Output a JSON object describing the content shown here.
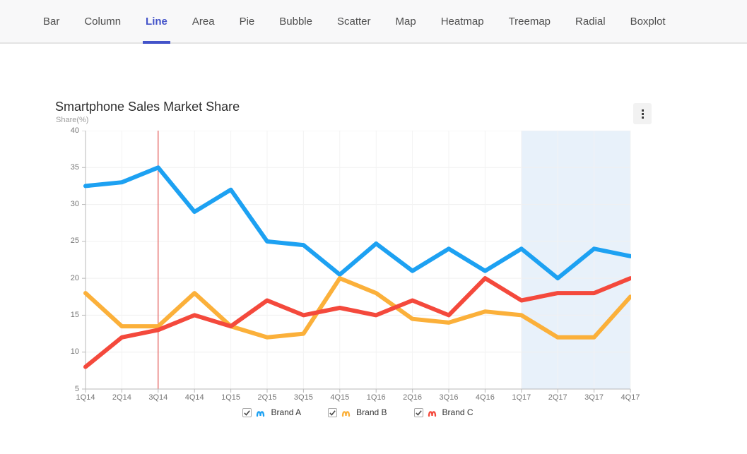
{
  "nav": {
    "tabs": [
      "Bar",
      "Column",
      "Line",
      "Area",
      "Pie",
      "Bubble",
      "Scatter",
      "Map",
      "Heatmap",
      "Treemap",
      "Radial",
      "Boxplot"
    ],
    "active_tab": "Line",
    "active_color": "#4353c9"
  },
  "header": {
    "menu_icon": "kebab-menu"
  },
  "chart_data": {
    "type": "line",
    "title": "Smartphone Sales Market Share",
    "ylabel": "Share(%)",
    "xlabel": "",
    "categories": [
      "1Q14",
      "2Q14",
      "3Q14",
      "4Q14",
      "1Q15",
      "2Q15",
      "3Q15",
      "4Q15",
      "1Q16",
      "2Q16",
      "3Q16",
      "4Q16",
      "1Q17",
      "2Q17",
      "3Q17",
      "4Q17"
    ],
    "series": [
      {
        "name": "Brand A",
        "color": "#1da1f2",
        "values": [
          32.5,
          33,
          35,
          29,
          32,
          25,
          24.5,
          20.5,
          24.7,
          21,
          24,
          21,
          24,
          20,
          24,
          23
        ]
      },
      {
        "name": "Brand B",
        "color": "#fbb03a",
        "values": [
          18,
          13.5,
          13.5,
          18,
          13.5,
          12,
          12.5,
          20,
          18,
          14.5,
          14,
          15.5,
          15,
          12,
          12,
          17.5
        ]
      },
      {
        "name": "Brand C",
        "color": "#f4493c",
        "values": [
          8,
          12,
          13,
          15,
          13.5,
          17,
          15,
          16,
          15,
          17,
          15,
          20,
          17,
          18,
          18,
          20
        ]
      }
    ],
    "ylim": [
      5,
      40
    ],
    "y_tick_step": 5,
    "grid": true,
    "legend_position": "bottom",
    "plot_band": {
      "from": "1Q17",
      "to": "4Q17",
      "color": "#e8f1fa"
    },
    "plot_line": {
      "at": "3Q14",
      "color": "#e03a34"
    }
  },
  "legend": {
    "items": [
      {
        "label": "Brand A",
        "checked": true
      },
      {
        "label": "Brand B",
        "checked": true
      },
      {
        "label": "Brand C",
        "checked": true
      }
    ]
  },
  "colors": {
    "grid_h": "#f0f0f0",
    "grid_v": "#f3f3f3",
    "axis": "#b9b9b9",
    "axis_label": "#757575",
    "title": "#2f2f2f",
    "navbar_bg": "#f8f8f9"
  }
}
